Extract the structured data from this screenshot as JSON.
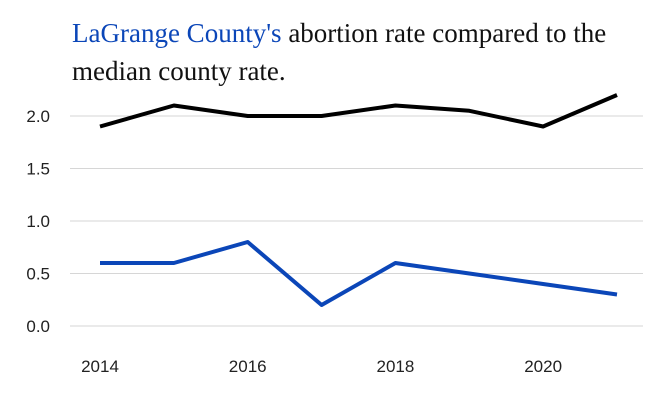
{
  "chart_data": {
    "type": "line",
    "title_highlight": "LaGrange County's",
    "title_rest": " abortion rate compared to the median county rate.",
    "xlabel": "",
    "ylabel": "",
    "x": [
      2014,
      2015,
      2016,
      2017,
      2018,
      2019,
      2020,
      2021
    ],
    "xticks": [
      2014,
      2016,
      2018,
      2020
    ],
    "yticks": [
      "0.0",
      "0.5",
      "1.0",
      "1.5",
      "2.0"
    ],
    "ylim": [
      0,
      2.25
    ],
    "xlim": [
      2014,
      2021
    ],
    "grid": true,
    "series": [
      {
        "values": [
          1.9,
          2.1,
          2.0,
          2.0,
          2.1,
          2.05,
          1.9,
          2.2
        ],
        "color": "#000000"
      },
      {
        "values": [
          0.6,
          0.6,
          0.8,
          0.2,
          0.6,
          0.5,
          0.4,
          0.3
        ],
        "color": "#0b46b8"
      }
    ]
  }
}
